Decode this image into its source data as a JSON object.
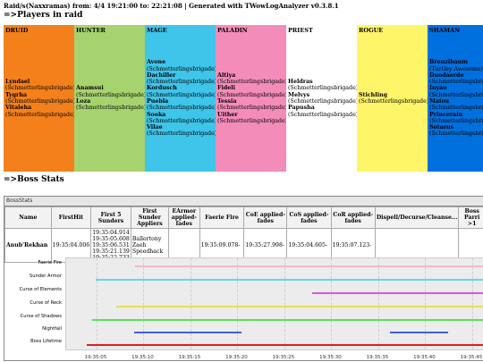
{
  "header": "Raid/s(Naxxramas) from: 4/4 19:21:00 to: 22:21:08 | Generated with TWowLogAnalyzer v0.3.8.1",
  "players_title": "=>Players in raid",
  "boss_title": "=>Boss Stats",
  "classes": [
    {
      "name": "DRUID",
      "color": "#f4801c",
      "members": [
        {
          "name": "Lyndael",
          "guild": "(Schmetterlingsbrigade)"
        },
        {
          "name": "Tygrha",
          "guild": "(Schmetterlingsbrigade)"
        },
        {
          "name": "Vitaleha",
          "guild": "(Schmetterlingsbrigade)"
        }
      ]
    },
    {
      "name": "HUNTER",
      "color": "#a7d36f",
      "members": [
        {
          "name": "Anamsui",
          "guild": "(Schmetterlingsbrigade)"
        },
        {
          "name": "Loza",
          "guild": "(Schmetterlingsbrigade)"
        }
      ]
    },
    {
      "name": "MAGE",
      "color": "#3fc4ea",
      "members": [
        {
          "name": "Avone",
          "guild": "(Schmetterlingsbrigade)"
        },
        {
          "name": "Dachiller",
          "guild": "(Schmetterlingsbrigade)"
        },
        {
          "name": "Kordusch",
          "guild": "(Schmetterlingsbrigade)"
        },
        {
          "name": "Puebla",
          "guild": "(Schmetterlingsbrigade)"
        },
        {
          "name": "Sooka",
          "guild": "(Schmetterlingsbrigade)"
        },
        {
          "name": "Vilae",
          "guild": "(Schmetterlingsbrigade)"
        }
      ]
    },
    {
      "name": "PALADIN",
      "color": "#f48cba",
      "members": [
        {
          "name": "Altiya",
          "guild": "(Schmetterlingsbrigade)"
        },
        {
          "name": "Fideli",
          "guild": "(Schmetterlingsbrigade)"
        },
        {
          "name": "Tessia",
          "guild": "(Schmetterlingsbrigade)"
        },
        {
          "name": "Uither",
          "guild": "(Schmetterlingsbrigade)"
        }
      ]
    },
    {
      "name": "PRIEST",
      "color": "#ffffff",
      "members": [
        {
          "name": "Heldras",
          "guild": "(Schmetterlingsbrigade)"
        },
        {
          "name": "Melvys",
          "guild": "(Schmetterlingsbrigade)"
        },
        {
          "name": "Papusha",
          "guild": "(Schmetterlingsbrigade)"
        }
      ]
    },
    {
      "name": "ROGUE",
      "color": "#fff569",
      "members": [
        {
          "name": "Stichling",
          "guild": "(Schmetterlingsbrigade)"
        }
      ]
    },
    {
      "name": "SHAMAN",
      "color": "#0070de",
      "members": [
        {
          "name": "Brenzlbaum",
          "guild": "(Turtley Awesome)"
        },
        {
          "name": "Duodaerde",
          "guild": "(Schmetterlingsbrigade)"
        },
        {
          "name": "Inyao",
          "guild": "(Schmetterlingsbrigade)"
        },
        {
          "name": "Maiou",
          "guild": "(Schmetterlingsbrigade)"
        },
        {
          "name": "Princerain",
          "guild": "(Schmetterlingsbrigade)"
        },
        {
          "name": "Sotarus",
          "guild": "(Schmetterlingsbrigade)"
        }
      ]
    }
  ],
  "boss_stats": {
    "panel_title": "BossStats",
    "columns": [
      "Name",
      "FirstHit",
      "First 5 Sunders",
      "First Sunder Appliers",
      "EArmor applied-fades",
      "Faerie Fire",
      "CoE applied-fades",
      "CoS applied-fades",
      "CoR applied-fades",
      "Dispell/Decurse/Cleanse...",
      "Boss Parri >1"
    ],
    "rows": [
      [
        "Anub'Rekhan",
        "19:35:04.006",
        "19:35:04.914 19:35:05.608 19:35:06.531 19:35:21.139 19:35:22.733",
        "Ballertony Zaeh Speedhack",
        "",
        "19:35:09.078-",
        "19:35:27.998-",
        "19:35:04.605-",
        "19:35:07.123-",
        "",
        ""
      ]
    ]
  },
  "timeline": {
    "labels": [
      "Faerie Fire",
      "Sunder Armor",
      "Curse of Elements",
      "Curse of Reck",
      "Curse of Shadows",
      "Nightfall",
      "Boss Lifetime"
    ],
    "ticks": [
      "19:35:05",
      "19:35:10",
      "19:35:15",
      "19:35:20",
      "19:35:25",
      "19:35:30",
      "19:35:35",
      "19:35:40",
      "19:35:45",
      "19:3"
    ],
    "bars": [
      {
        "row": 0,
        "start": 9.1,
        "end": 52,
        "color": "#f2b8d0"
      },
      {
        "row": 1,
        "start": 4.9,
        "end": 52,
        "color": "#5ed8e6"
      },
      {
        "row": 2,
        "start": 28.0,
        "end": 52,
        "color": "#e052e0"
      },
      {
        "row": 3,
        "start": 7.1,
        "end": 52,
        "color": "#e6e052"
      },
      {
        "row": 4,
        "start": 4.6,
        "end": 52,
        "color": "#5ce05c"
      },
      {
        "row": 5,
        "start": 9.0,
        "end": 20.5,
        "color": "#4060e0"
      },
      {
        "row": 5,
        "start": 36.3,
        "end": 42.5,
        "color": "#4060e0"
      },
      {
        "row": 6,
        "start": 4.0,
        "end": 52,
        "color": "#e02020"
      }
    ]
  }
}
